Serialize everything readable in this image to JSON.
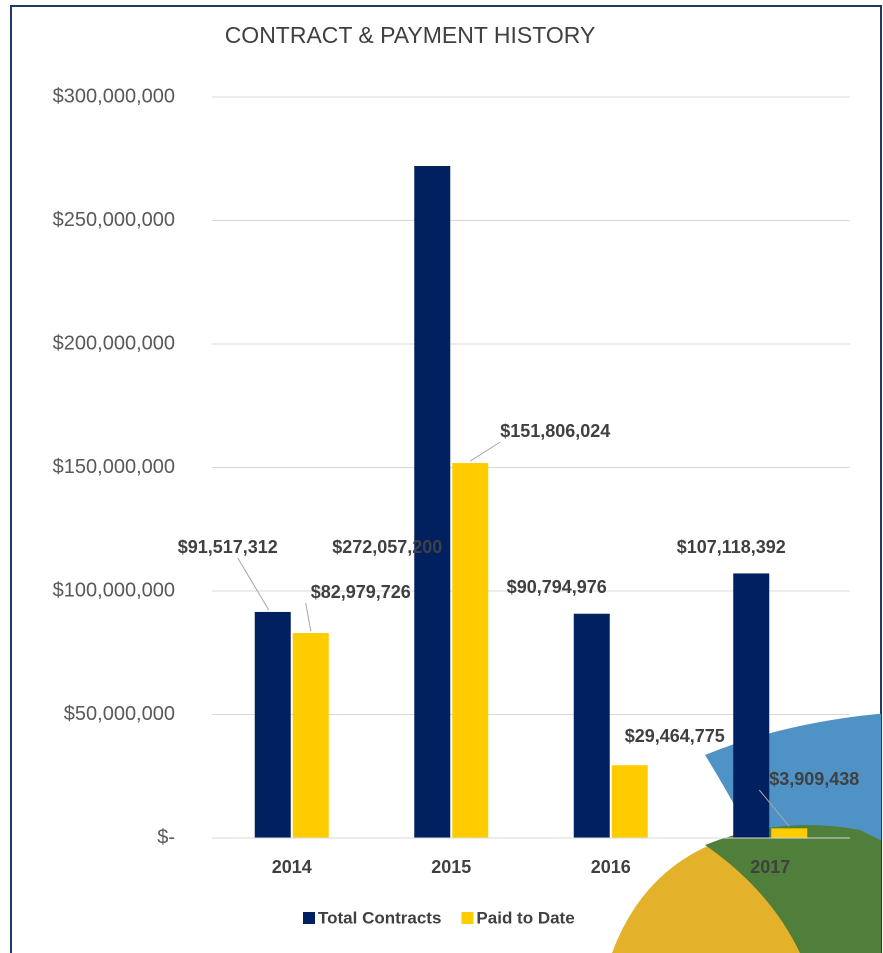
{
  "chart_data": {
    "type": "bar",
    "title": "CONTRACT & PAYMENT HISTORY",
    "categories": [
      "2014",
      "2015",
      "2016",
      "2017"
    ],
    "series": [
      {
        "name": "Total Contracts",
        "color": "#002060",
        "values": [
          91517312,
          272057200,
          90794976,
          107118392
        ],
        "value_labels": [
          "$91,517,312",
          "$272,057,200",
          "$90,794,976",
          "$107,118,392"
        ]
      },
      {
        "name": "Paid to Date",
        "color": "#ffcc00",
        "values": [
          82979726,
          151806024,
          29464775,
          3909438
        ],
        "value_labels": [
          "$82,979,726",
          "$151,806,024",
          "$29,464,775",
          "$3,909,438"
        ]
      }
    ],
    "ylim": [
      0,
      300000000
    ],
    "yticks": [
      {
        "value": 0,
        "label": "$-"
      },
      {
        "value": 50000000,
        "label": "$50,000,000"
      },
      {
        "value": 100000000,
        "label": "$100,000,000"
      },
      {
        "value": 150000000,
        "label": "$150,000,000"
      },
      {
        "value": 200000000,
        "label": "$200,000,000"
      },
      {
        "value": 250000000,
        "label": "$250,000,000"
      },
      {
        "value": 300000000,
        "label": "$300,000,000"
      }
    ],
    "grid": true,
    "legend": "bottom"
  }
}
